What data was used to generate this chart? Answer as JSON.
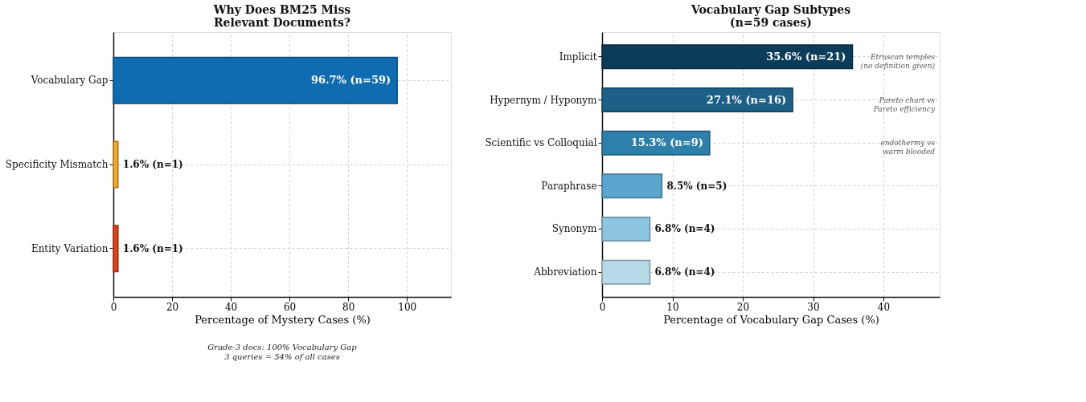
{
  "chart_data": [
    {
      "type": "bar",
      "orientation": "horizontal",
      "title": "Why Does BM25 Miss\nRelevant Documents?",
      "xlabel": "Percentage of Mystery Cases (%)",
      "categories": [
        "Vocabulary Gap",
        "Specificity Mismatch",
        "Entity Variation"
      ],
      "values": [
        96.7,
        1.6,
        1.6
      ],
      "colors": [
        "#0f6cb0",
        "#f0a82c",
        "#d8431a"
      ],
      "value_labels": [
        "96.7%  (n=59)",
        "1.6% (n=1)",
        "1.6% (n=1)"
      ],
      "xlim": [
        0,
        115
      ],
      "xticks": [
        0,
        20,
        40,
        60,
        80,
        100
      ],
      "grid": true,
      "annotations": [
        "Grade-3 docs: 100% Vocabulary Gap\n3 queries = 54% of all cases"
      ]
    },
    {
      "type": "bar",
      "orientation": "horizontal",
      "title": "Vocabulary Gap Subtypes\n(n=59 cases)",
      "xlabel": "Percentage of Vocabulary Gap Cases (%)",
      "categories": [
        "Implicit",
        "Hypernym / Hyponym",
        "Scientific vs Colloquial",
        "Paraphrase",
        "Synonym",
        "Abbreviation"
      ],
      "values": [
        35.6,
        27.1,
        15.3,
        8.5,
        6.8,
        6.8
      ],
      "colors": [
        "#0b3c5a",
        "#1d5f87",
        "#2e7fa9",
        "#5aa6cf",
        "#8fc6df",
        "#b6dae8"
      ],
      "value_labels": [
        "35.6%  (n=21)",
        "27.1%  (n=16)",
        "15.3%  (n=9)",
        "8.5% (n=5)",
        "6.8% (n=4)",
        "6.8% (n=4)"
      ],
      "xlim": [
        0,
        48
      ],
      "xticks": [
        0,
        10,
        20,
        30,
        40
      ],
      "grid": true,
      "annotations": [
        "Etruscan temples\n(no definition given)",
        "Pareto chart vs\nPareto efficiency",
        "endothermy vs\nwarm blooded"
      ]
    }
  ]
}
